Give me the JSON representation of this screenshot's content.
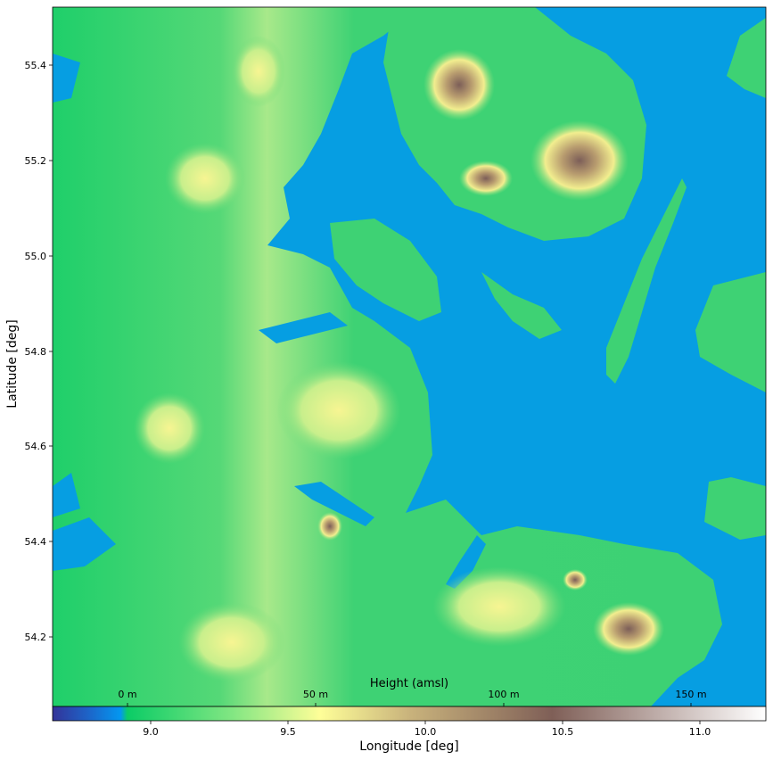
{
  "chart_data": {
    "type": "heatmap",
    "title": "",
    "xlabel": "Longitude [deg]",
    "ylabel": "Latitude [deg]",
    "xlim": [
      8.65,
      11.25
    ],
    "ylim": [
      54.04,
      55.52
    ],
    "x_ticks": [
      "9.0",
      "9.5",
      "10.0",
      "10.5",
      "11.0"
    ],
    "x_tick_values": [
      9.0,
      9.5,
      10.0,
      10.5,
      11.0
    ],
    "y_ticks": [
      "55.4",
      "55.2",
      "55.0",
      "54.8",
      "54.6",
      "54.4",
      "54.2"
    ],
    "y_tick_values": [
      55.4,
      55.2,
      55.0,
      54.8,
      54.6,
      54.4,
      54.2
    ],
    "colorbar": {
      "label": "Height (amsl)",
      "ticks": [
        "0 m",
        "50 m",
        "100 m",
        "150 m"
      ],
      "tick_values": [
        0,
        50,
        100,
        150
      ],
      "range_m": [
        -20,
        170
      ],
      "colormap": "terrain"
    },
    "colors": {
      "water": "#069ee2",
      "lowland": "#22cc6e",
      "mid": "#f5f58a",
      "hill": "#c1a471",
      "peak": "#7f6258",
      "top": "#ffffff"
    }
  }
}
